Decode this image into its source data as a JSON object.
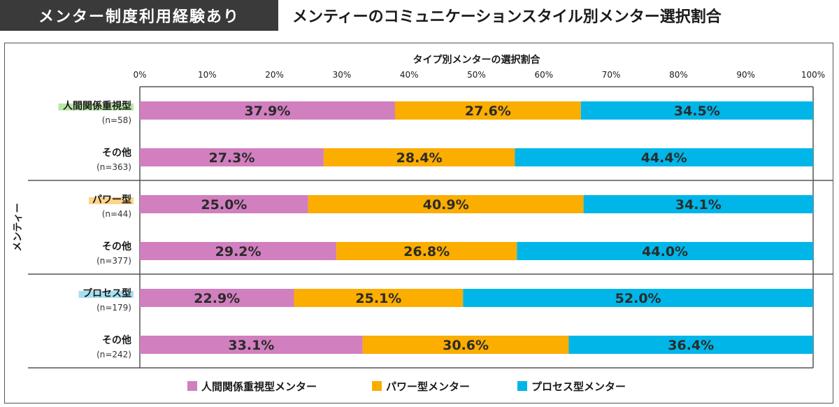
{
  "header": {
    "badge": "メンター制度利用経験あり",
    "title": "メンティーのコミュニケーションスタイル別メンター選択割合"
  },
  "chart_data": {
    "type": "bar",
    "orientation": "horizontal",
    "stacked": true,
    "title": "タイプ別メンターの選択割合",
    "ylabel": "メンティー",
    "xlim": [
      0,
      100
    ],
    "x_ticks": [
      "0%",
      "10%",
      "20%",
      "30%",
      "40%",
      "50%",
      "60%",
      "70%",
      "80%",
      "90%",
      "100%"
    ],
    "legend_position": "bottom",
    "groups": [
      {
        "label": "人間関係重視型",
        "highlight": "#b9e7a6",
        "rows": [
          {
            "label": "人間関係重視型",
            "n": "(n=58)",
            "values": [
              37.9,
              27.6,
              34.5
            ],
            "labels": [
              "37.9%",
              "27.6%",
              "34.5%"
            ]
          },
          {
            "label": "その他",
            "n": "(n=363)",
            "values": [
              27.3,
              28.4,
              44.4
            ],
            "labels": [
              "27.3%",
              "28.4%",
              "44.4%"
            ]
          }
        ]
      },
      {
        "label": "パワー型",
        "highlight": "#fcd58a",
        "rows": [
          {
            "label": "パワー型",
            "n": "(n=44)",
            "values": [
              25.0,
              40.9,
              34.1
            ],
            "labels": [
              "25.0%",
              "40.9%",
              "34.1%"
            ]
          },
          {
            "label": "その他",
            "n": "(n=377)",
            "values": [
              29.2,
              26.8,
              44.0
            ],
            "labels": [
              "29.2%",
              "26.8%",
              "44.0%"
            ]
          }
        ]
      },
      {
        "label": "プロセス型",
        "highlight": "#a6e0f2",
        "rows": [
          {
            "label": "プロセス型",
            "n": "(n=179)",
            "values": [
              22.9,
              25.1,
              52.0
            ],
            "labels": [
              "22.9%",
              "25.1%",
              "52.0%"
            ]
          },
          {
            "label": "その他",
            "n": "(n=242)",
            "values": [
              33.1,
              30.6,
              36.4
            ],
            "labels": [
              "33.1%",
              "30.6%",
              "36.4%"
            ]
          }
        ]
      }
    ],
    "series": [
      {
        "name": "人間関係重視型メンター",
        "color": "#d17fbf"
      },
      {
        "name": "パワー型メンター",
        "color": "#fbad00"
      },
      {
        "name": "プロセス型メンター",
        "color": "#00b6e8"
      }
    ]
  }
}
